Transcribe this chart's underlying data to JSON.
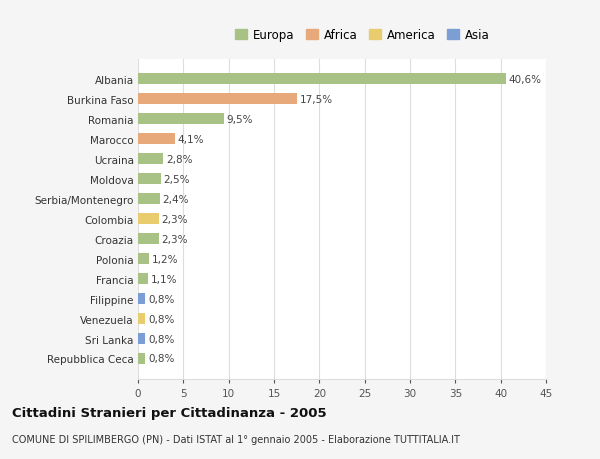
{
  "countries": [
    "Albania",
    "Burkina Faso",
    "Romania",
    "Marocco",
    "Ucraina",
    "Moldova",
    "Serbia/Montenegro",
    "Colombia",
    "Croazia",
    "Polonia",
    "Francia",
    "Filippine",
    "Venezuela",
    "Sri Lanka",
    "Repubblica Ceca"
  ],
  "values": [
    40.6,
    17.5,
    9.5,
    4.1,
    2.8,
    2.5,
    2.4,
    2.3,
    2.3,
    1.2,
    1.1,
    0.8,
    0.8,
    0.8,
    0.8
  ],
  "labels": [
    "40,6%",
    "17,5%",
    "9,5%",
    "4,1%",
    "2,8%",
    "2,5%",
    "2,4%",
    "2,3%",
    "2,3%",
    "1,2%",
    "1,1%",
    "0,8%",
    "0,8%",
    "0,8%",
    "0,8%"
  ],
  "continents": [
    "Europa",
    "Africa",
    "Europa",
    "Africa",
    "Europa",
    "Europa",
    "Europa",
    "America",
    "Europa",
    "Europa",
    "Europa",
    "Asia",
    "America",
    "Asia",
    "Europa"
  ],
  "continent_colors": {
    "Europa": "#a8c285",
    "Africa": "#e8a97a",
    "America": "#e8cc6e",
    "Asia": "#7b9fd4"
  },
  "legend_order": [
    "Europa",
    "Africa",
    "America",
    "Asia"
  ],
  "title": "Cittadini Stranieri per Cittadinanza - 2005",
  "subtitle": "COMUNE DI SPILIMBERGO (PN) - Dati ISTAT al 1° gennaio 2005 - Elaborazione TUTTITALIA.IT",
  "xlim": [
    0,
    45
  ],
  "xticks": [
    0,
    5,
    10,
    15,
    20,
    25,
    30,
    35,
    40,
    45
  ],
  "bg_color": "#f5f5f5",
  "plot_bg_color": "#ffffff",
  "grid_color": "#dddddd",
  "bar_height": 0.55,
  "label_fontsize": 7.5,
  "tick_fontsize": 7.5,
  "title_fontsize": 9.5,
  "subtitle_fontsize": 7.0,
  "legend_fontsize": 8.5
}
